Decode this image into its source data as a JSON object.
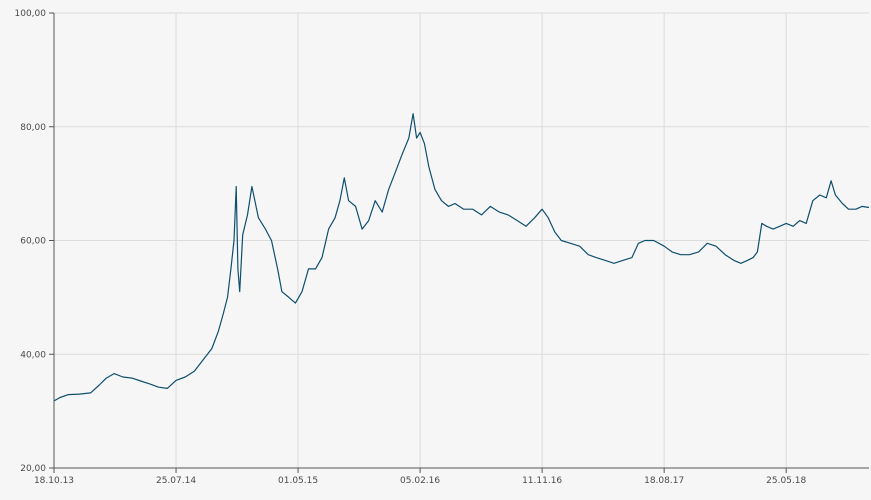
{
  "chart_data": {
    "type": "line",
    "title": "",
    "xlabel": "",
    "ylabel": "",
    "ylim": [
      20,
      100
    ],
    "y_ticks": [
      {
        "value": 20,
        "label": "20,00"
      },
      {
        "value": 40,
        "label": "40,00"
      },
      {
        "value": 60,
        "label": "60,00"
      },
      {
        "value": 80,
        "label": "80,00"
      },
      {
        "value": 100,
        "label": "100,00"
      }
    ],
    "x_range": [
      "2013-10-18",
      "2018-12-01"
    ],
    "x_ticks": [
      {
        "date": "2013-10-18",
        "label": "18.10.13"
      },
      {
        "date": "2014-07-25",
        "label": "25.07.14"
      },
      {
        "date": "2015-05-01",
        "label": "01.05.15"
      },
      {
        "date": "2016-02-05",
        "label": "05.02.16"
      },
      {
        "date": "2016-11-11",
        "label": "11.11.16"
      },
      {
        "date": "2017-08-18",
        "label": "18.08.17"
      },
      {
        "date": "2018-05-25",
        "label": "25.05.18"
      }
    ],
    "grid": true,
    "line_color": "#0e4f6e",
    "series": [
      {
        "values": [
          [
            "2013-10-18",
            31.8
          ],
          [
            "2013-11-01",
            32.4
          ],
          [
            "2013-11-20",
            32.9
          ],
          [
            "2013-12-15",
            33.0
          ],
          [
            "2014-01-10",
            33.2
          ],
          [
            "2014-01-30",
            34.6
          ],
          [
            "2014-02-15",
            35.8
          ],
          [
            "2014-03-05",
            36.6
          ],
          [
            "2014-03-25",
            36.0
          ],
          [
            "2014-04-15",
            35.8
          ],
          [
            "2014-05-05",
            35.3
          ],
          [
            "2014-05-25",
            34.8
          ],
          [
            "2014-06-15",
            34.2
          ],
          [
            "2014-07-05",
            34.0
          ],
          [
            "2014-07-25",
            35.4
          ],
          [
            "2014-08-15",
            36.0
          ],
          [
            "2014-09-05",
            37.0
          ],
          [
            "2014-09-25",
            39.0
          ],
          [
            "2014-10-15",
            41.0
          ],
          [
            "2014-10-30",
            44.0
          ],
          [
            "2014-11-10",
            47.0
          ],
          [
            "2014-11-20",
            50.0
          ],
          [
            "2014-11-28",
            55.0
          ],
          [
            "2014-12-05",
            60.0
          ],
          [
            "2014-12-10",
            69.5
          ],
          [
            "2014-12-14",
            55.0
          ],
          [
            "2014-12-18",
            51.0
          ],
          [
            "2014-12-25",
            61.0
          ],
          [
            "2015-01-05",
            64.5
          ],
          [
            "2015-01-15",
            69.5
          ],
          [
            "2015-01-30",
            64.0
          ],
          [
            "2015-02-15",
            62.0
          ],
          [
            "2015-03-01",
            60.0
          ],
          [
            "2015-03-15",
            55.0
          ],
          [
            "2015-03-25",
            51.0
          ],
          [
            "2015-04-10",
            50.0
          ],
          [
            "2015-04-25",
            49.0
          ],
          [
            "2015-05-10",
            51.0
          ],
          [
            "2015-05-25",
            55.0
          ],
          [
            "2015-06-10",
            55.0
          ],
          [
            "2015-06-25",
            57.0
          ],
          [
            "2015-07-10",
            62.0
          ],
          [
            "2015-07-25",
            64.0
          ],
          [
            "2015-08-05",
            67.0
          ],
          [
            "2015-08-15",
            71.0
          ],
          [
            "2015-08-25",
            67.0
          ],
          [
            "2015-09-10",
            66.0
          ],
          [
            "2015-09-25",
            62.0
          ],
          [
            "2015-10-10",
            63.5
          ],
          [
            "2015-10-25",
            67.0
          ],
          [
            "2015-11-10",
            65.0
          ],
          [
            "2015-11-25",
            69.0
          ],
          [
            "2015-12-10",
            72.0
          ],
          [
            "2015-12-25",
            75.0
          ],
          [
            "2016-01-10",
            78.0
          ],
          [
            "2016-01-20",
            82.3
          ],
          [
            "2016-01-28",
            78.0
          ],
          [
            "2016-02-05",
            79.0
          ],
          [
            "2016-02-15",
            77.0
          ],
          [
            "2016-02-25",
            73.0
          ],
          [
            "2016-03-10",
            69.0
          ],
          [
            "2016-03-25",
            67.0
          ],
          [
            "2016-04-10",
            66.0
          ],
          [
            "2016-04-25",
            66.5
          ],
          [
            "2016-05-15",
            65.5
          ],
          [
            "2016-06-05",
            65.5
          ],
          [
            "2016-06-25",
            64.5
          ],
          [
            "2016-07-15",
            66.0
          ],
          [
            "2016-08-05",
            65.0
          ],
          [
            "2016-08-25",
            64.5
          ],
          [
            "2016-09-15",
            63.5
          ],
          [
            "2016-10-05",
            62.5
          ],
          [
            "2016-10-25",
            64.0
          ],
          [
            "2016-11-11",
            65.5
          ],
          [
            "2016-11-25",
            64.0
          ],
          [
            "2016-12-10",
            61.5
          ],
          [
            "2016-12-25",
            60.0
          ],
          [
            "2017-01-15",
            59.5
          ],
          [
            "2017-02-05",
            59.0
          ],
          [
            "2017-02-25",
            57.5
          ],
          [
            "2017-03-15",
            57.0
          ],
          [
            "2017-04-05",
            56.5
          ],
          [
            "2017-04-25",
            56.0
          ],
          [
            "2017-05-15",
            56.5
          ],
          [
            "2017-06-05",
            57.0
          ],
          [
            "2017-06-20",
            59.5
          ],
          [
            "2017-07-05",
            60.0
          ],
          [
            "2017-07-25",
            60.0
          ],
          [
            "2017-08-18",
            59.0
          ],
          [
            "2017-09-05",
            58.0
          ],
          [
            "2017-09-25",
            57.5
          ],
          [
            "2017-10-15",
            57.5
          ],
          [
            "2017-11-05",
            58.0
          ],
          [
            "2017-11-25",
            59.5
          ],
          [
            "2017-12-15",
            59.0
          ],
          [
            "2018-01-05",
            57.5
          ],
          [
            "2018-01-25",
            56.5
          ],
          [
            "2018-02-10",
            56.0
          ],
          [
            "2018-02-25",
            56.5
          ],
          [
            "2018-03-10",
            57.0
          ],
          [
            "2018-03-20",
            58.0
          ],
          [
            "2018-03-30",
            63.0
          ],
          [
            "2018-04-10",
            62.5
          ],
          [
            "2018-04-25",
            62.0
          ],
          [
            "2018-05-10",
            62.5
          ],
          [
            "2018-05-25",
            63.0
          ],
          [
            "2018-06-10",
            62.5
          ],
          [
            "2018-06-25",
            63.5
          ],
          [
            "2018-07-10",
            63.0
          ],
          [
            "2018-07-25",
            67.0
          ],
          [
            "2018-08-10",
            68.0
          ],
          [
            "2018-08-25",
            67.5
          ],
          [
            "2018-09-05",
            70.5
          ],
          [
            "2018-09-15",
            68.0
          ],
          [
            "2018-10-01",
            66.5
          ],
          [
            "2018-10-15",
            65.5
          ],
          [
            "2018-11-01",
            65.5
          ],
          [
            "2018-11-15",
            66.0
          ],
          [
            "2018-12-01",
            65.8
          ]
        ]
      }
    ]
  }
}
